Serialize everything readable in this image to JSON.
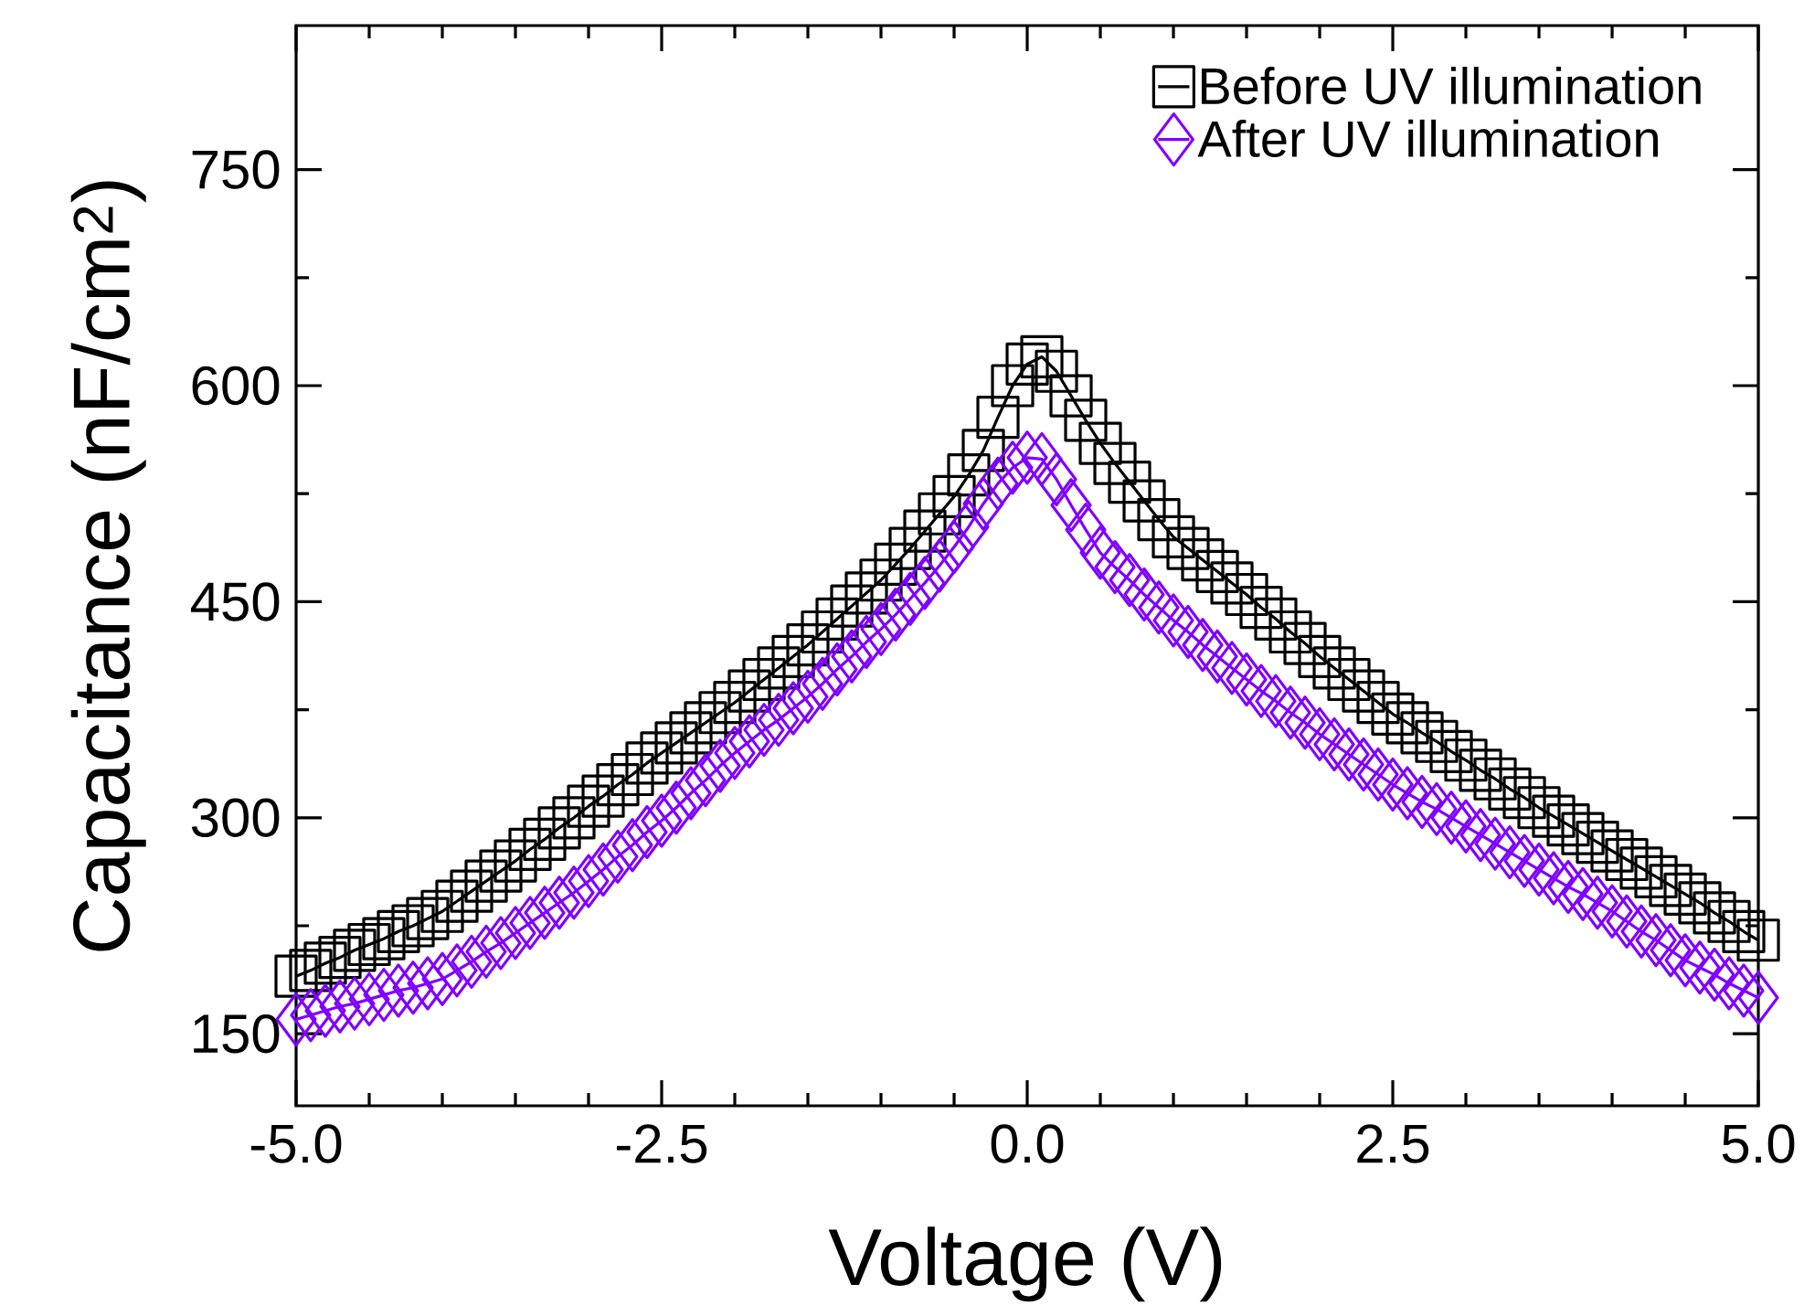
{
  "chart_data": {
    "type": "line",
    "xlabel": "Voltage (V)",
    "ylabel": "Capacitance (nF/cm$^{2}$)",
    "xlim": [
      -5,
      5
    ],
    "ylim": [
      100,
      850
    ],
    "xticks": [
      {
        "value": -5,
        "label": "-5.0"
      },
      -2.5,
      {
        "value": 0,
        "label": "0.0"
      },
      2.5,
      {
        "value": 5,
        "label": "5.0"
      }
    ],
    "yticks": [
      150,
      300,
      450,
      600,
      750
    ],
    "legend": "top right",
    "x": [
      -5.0,
      -4.9,
      -4.8,
      -4.7,
      -4.6,
      -4.5,
      -4.4,
      -4.3,
      -4.2,
      -4.1,
      -4.0,
      -3.9,
      -3.8,
      -3.7,
      -3.6,
      -3.5,
      -3.4,
      -3.3,
      -3.2,
      -3.1,
      -3.0,
      -2.9,
      -2.8,
      -2.7,
      -2.6,
      -2.5,
      -2.4,
      -2.3,
      -2.2,
      -2.1,
      -2.0,
      -1.9,
      -1.8,
      -1.7,
      -1.6,
      -1.5,
      -1.4,
      -1.3,
      -1.2,
      -1.1,
      -1.0,
      -0.9,
      -0.8,
      -0.7,
      -0.6,
      -0.5,
      -0.4,
      -0.3,
      -0.2,
      -0.1,
      0.0,
      0.1,
      0.2,
      0.3,
      0.4,
      0.5,
      0.6,
      0.7,
      0.8,
      0.9,
      1.0,
      1.1,
      1.2,
      1.3,
      1.4,
      1.5,
      1.6,
      1.7,
      1.8,
      1.9,
      2.0,
      2.1,
      2.2,
      2.3,
      2.4,
      2.5,
      2.6,
      2.7,
      2.8,
      2.9,
      3.0,
      3.1,
      3.2,
      3.3,
      3.4,
      3.5,
      3.6,
      3.7,
      3.8,
      3.9,
      4.0,
      4.1,
      4.2,
      4.3,
      4.4,
      4.5,
      4.6,
      4.7,
      4.8,
      4.9,
      5.0
    ],
    "series": [
      {
        "name": "Before UV illumination",
        "color": "#000000",
        "marker": "square",
        "values": [
          190,
          194,
          199,
          203,
          208,
          212,
          216,
          221,
          225,
          230,
          235,
          242,
          249,
          256,
          263,
          270,
          278,
          285,
          293,
          300,
          308,
          315,
          323,
          330,
          338,
          345,
          352,
          359,
          366,
          373,
          380,
          388,
          396,
          404,
          412,
          420,
          429,
          438,
          447,
          456,
          465,
          476,
          487,
          499,
          511,
          523,
          538,
          555,
          578,
          600,
          615,
          620,
          610,
          593,
          576,
          560,
          546,
          533,
          520,
          507,
          495,
          487,
          479,
          471,
          463,
          455,
          446,
          438,
          429,
          421,
          412,
          404,
          396,
          388,
          380,
          372,
          366,
          359,
          353,
          346,
          340,
          333,
          327,
          320,
          314,
          307,
          301,
          295,
          289,
          283,
          277,
          271,
          265,
          259,
          253,
          247,
          241,
          234,
          228,
          221,
          215
        ]
      },
      {
        "name": "After UV illumination",
        "color": "#8000ff",
        "marker": "diamond",
        "values": [
          160,
          163,
          166,
          169,
          171,
          174,
          177,
          180,
          182,
          185,
          188,
          194,
          200,
          207,
          213,
          220,
          227,
          234,
          241,
          248,
          256,
          264,
          273,
          281,
          290,
          298,
          307,
          317,
          326,
          336,
          345,
          353,
          361,
          368,
          376,
          384,
          393,
          403,
          412,
          422,
          431,
          441,
          452,
          463,
          475,
          488,
          502,
          518,
          532,
          543,
          550,
          549,
          535,
          517,
          500,
          484,
          474,
          465,
          455,
          446,
          437,
          429,
          420,
          412,
          404,
          396,
          388,
          381,
          373,
          366,
          358,
          351,
          344,
          337,
          330,
          323,
          317,
          311,
          306,
          300,
          294,
          288,
          282,
          276,
          270,
          264,
          258,
          252,
          247,
          241,
          235,
          228,
          221,
          215,
          208,
          201,
          196,
          191,
          185,
          180,
          175
        ]
      }
    ]
  }
}
